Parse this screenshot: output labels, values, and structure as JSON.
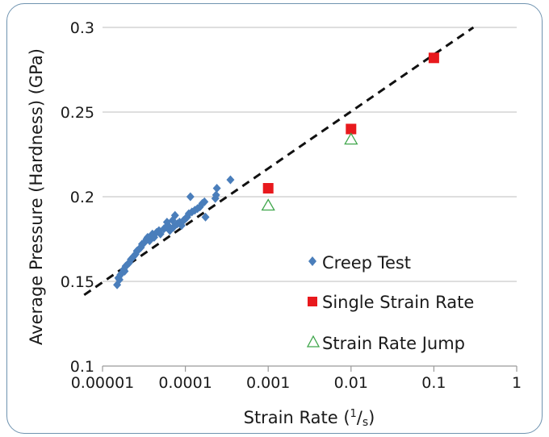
{
  "chart_data": {
    "type": "scatter",
    "xscale": "log",
    "xlim": [
      1e-05,
      1
    ],
    "ylim": [
      0.1,
      0.3
    ],
    "xticks": [
      "0.00001",
      "0.0001",
      "0.001",
      "0.01",
      "0.1",
      "1"
    ],
    "yticks": [
      "0.1",
      "0.15",
      "0.2",
      "0.25",
      "0.3"
    ],
    "xlabel": "Strain Rate (",
    "xlabel_unit_num": "1",
    "xlabel_unit_den": "s",
    "xlabel_close": ")",
    "ylabel": "Average Pressure (Hardness) (GPa)",
    "grid": "horizontal",
    "legend_position": "lower-right",
    "series": [
      {
        "name": "Creep Test",
        "marker": "diamond",
        "color": "#4a7ebb",
        "points": [
          [
            1.5e-05,
            0.148
          ],
          [
            1.55e-05,
            0.152
          ],
          [
            1.6e-05,
            0.151
          ],
          [
            1.65e-05,
            0.154
          ],
          [
            1.72e-05,
            0.155
          ],
          [
            1.8e-05,
            0.157
          ],
          [
            1.85e-05,
            0.156
          ],
          [
            1.9e-05,
            0.159
          ],
          [
            2e-05,
            0.16
          ],
          [
            2.1e-05,
            0.161
          ],
          [
            2.2e-05,
            0.163
          ],
          [
            2.3e-05,
            0.164
          ],
          [
            2.4e-05,
            0.165
          ],
          [
            2.5e-05,
            0.166
          ],
          [
            2.6e-05,
            0.168
          ],
          [
            2.75e-05,
            0.169
          ],
          [
            2.9e-05,
            0.17
          ],
          [
            3e-05,
            0.172
          ],
          [
            3.2e-05,
            0.173
          ],
          [
            3.4e-05,
            0.175
          ],
          [
            3.5e-05,
            0.176
          ],
          [
            3.7e-05,
            0.174
          ],
          [
            3.9e-05,
            0.177
          ],
          [
            4e-05,
            0.178
          ],
          [
            4.2e-05,
            0.176
          ],
          [
            4.5e-05,
            0.179
          ],
          [
            4.8e-05,
            0.18
          ],
          [
            5e-05,
            0.178
          ],
          [
            5.5e-05,
            0.181
          ],
          [
            5.8e-05,
            0.182
          ],
          [
            6e-05,
            0.185
          ],
          [
            6.2e-05,
            0.183
          ],
          [
            6.5e-05,
            0.18
          ],
          [
            7e-05,
            0.186
          ],
          [
            7.2e-05,
            0.182
          ],
          [
            7.5e-05,
            0.189
          ],
          [
            8e-05,
            0.184
          ],
          [
            8.5e-05,
            0.185
          ],
          [
            9e-05,
            0.183
          ],
          [
            9.5e-05,
            0.186
          ],
          [
            0.0001,
            0.187
          ],
          [
            0.000105,
            0.188
          ],
          [
            0.00011,
            0.19
          ],
          [
            0.000115,
            0.2
          ],
          [
            0.00012,
            0.191
          ],
          [
            0.00013,
            0.192
          ],
          [
            0.00014,
            0.193
          ],
          [
            0.00015,
            0.194
          ],
          [
            0.00016,
            0.196
          ],
          [
            0.00017,
            0.197
          ],
          [
            0.000175,
            0.188
          ],
          [
            0.00023,
            0.199
          ],
          [
            0.000235,
            0.201
          ],
          [
            0.00024,
            0.205
          ],
          [
            0.00035,
            0.21
          ]
        ]
      },
      {
        "name": "Single Strain Rate",
        "marker": "square",
        "color": "#e8191d",
        "points": [
          [
            0.001,
            0.205
          ],
          [
            0.01,
            0.24
          ],
          [
            0.1,
            0.282
          ]
        ]
      },
      {
        "name": "Strain Rate Jump",
        "marker": "triangle-open",
        "color": "#3fa64b",
        "points": [
          [
            0.001,
            0.195
          ],
          [
            0.01,
            0.234
          ]
        ]
      }
    ],
    "trendline": {
      "style": "dashed",
      "color": "#111111",
      "x": [
        6e-06,
        0.3
      ],
      "y": [
        0.142,
        0.3
      ]
    }
  }
}
